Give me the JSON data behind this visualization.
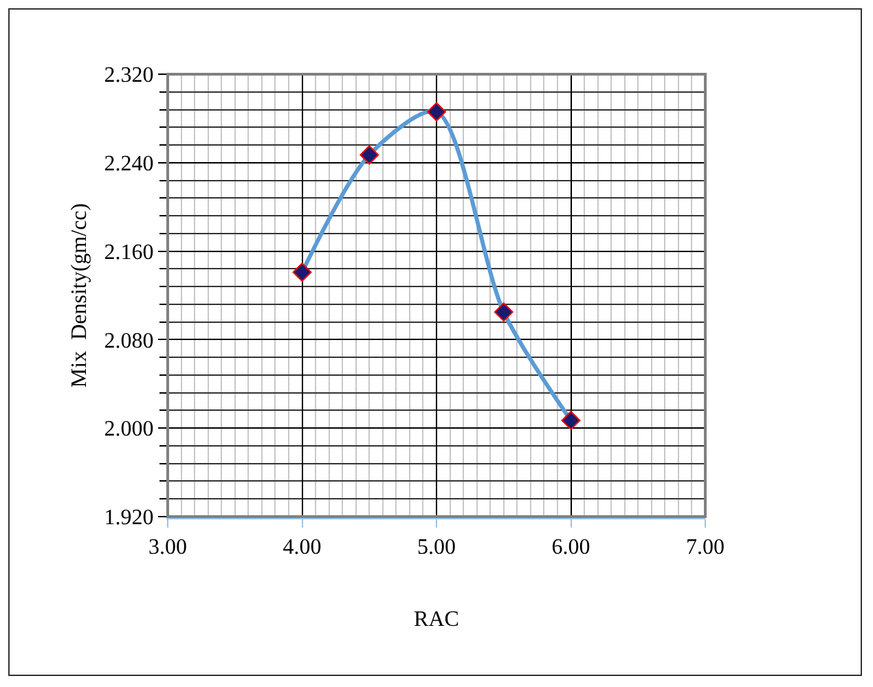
{
  "chart_data": {
    "type": "line",
    "xlabel": "RAC",
    "ylabel": "Mix  Density(gm/cc)",
    "x": [
      4,
      4.5,
      5,
      5.5,
      6
    ],
    "series": [
      {
        "color": "#5b9bd5",
        "values": [
          2.141,
          2.247,
          2.286,
          2.105,
          2.007
        ]
      }
    ],
    "xlim": [
      3,
      7
    ],
    "xticks": [
      {
        "value": 3,
        "label": "3.00"
      },
      {
        "value": 4,
        "label": "4.00"
      },
      {
        "value": 5,
        "label": "5.00"
      },
      {
        "value": 6,
        "label": "6.00"
      },
      {
        "value": 7,
        "label": "7.00"
      }
    ],
    "ylim": [
      1.92,
      2.32
    ],
    "yticks": [
      {
        "value": 1.92,
        "label": "1.920"
      },
      {
        "value": 2,
        "label": "2.000"
      },
      {
        "value": 2.08,
        "label": "2.080"
      },
      {
        "value": 2.16,
        "label": "2.160"
      },
      {
        "value": 2.24,
        "label": "2.240"
      },
      {
        "value": 2.32,
        "label": "2.320"
      }
    ],
    "grid": true,
    "marker": "diamond",
    "line_style": "solid"
  }
}
